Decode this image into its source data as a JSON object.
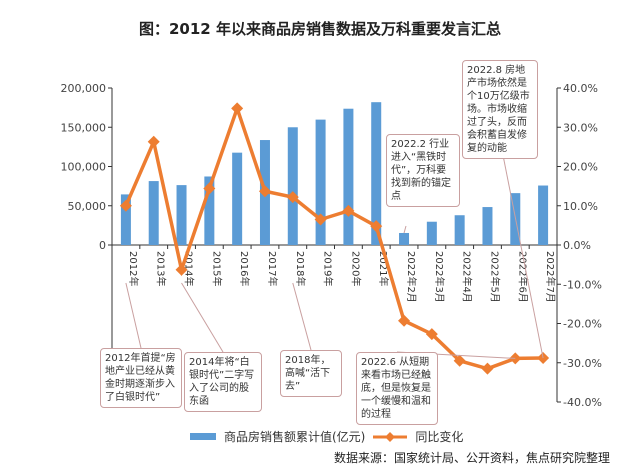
{
  "title": "图：2012 年以来商品房销售数据及万科重要发言汇总",
  "chart_data": {
    "type": "bar+line",
    "categories": [
      "2012年",
      "2013年",
      "2014年",
      "2015年",
      "2016年",
      "2017年",
      "2018年",
      "2019年",
      "2020年",
      "2021年",
      "2022年2月",
      "2022年3月",
      "2022年4月",
      "2022年5月",
      "2022年6月",
      "2022年7月"
    ],
    "series": [
      {
        "name": "商品房销售额累计值(亿元)",
        "type": "bar",
        "axis": "left",
        "color": "#5b9bd5",
        "values": [
          64456,
          81428,
          76292,
          87281,
          117627,
          133701,
          149973,
          159725,
          173613,
          181930,
          15303,
          29655,
          37921,
          48337,
          66072,
          75763
        ]
      },
      {
        "name": "同比变化",
        "type": "line",
        "axis": "right",
        "color": "#ed7d31",
        "values": [
          10.0,
          26.3,
          -6.3,
          14.4,
          34.8,
          13.7,
          12.2,
          6.5,
          8.7,
          4.8,
          -19.3,
          -22.7,
          -29.5,
          -31.5,
          -28.9,
          -28.8
        ]
      }
    ],
    "left_axis": {
      "ylim": [
        0,
        200000
      ],
      "ticks": [
        "0",
        "50,000",
        "100,000",
        "150,000",
        "200,000"
      ]
    },
    "right_axis": {
      "ylim": [
        -40,
        40
      ],
      "ticks": [
        "-40.0%",
        "-30.0%",
        "-20.0%",
        "-10.0%",
        "0.0%",
        "10.0%",
        "20.0%",
        "30.0%",
        "40.0%"
      ]
    },
    "legend_position": "bottom",
    "annotations": [
      {
        "text": "2012年首提“房地产业已经从黄金时期逐渐步入了白银时代”",
        "category": 0
      },
      {
        "text": "2014年将“白银时代”二字写入了公司的股东函",
        "category": 2
      },
      {
        "text": "2018年，高喊“活下去”",
        "category": 6
      },
      {
        "text": "2022.2 行业进入“黑铁时代”，万科要找到新的锚定点",
        "category": 10
      },
      {
        "text": "2022.6 从短期来看市场已经触底，但是恢复是一个缓慢和温和的过程",
        "category": 14
      },
      {
        "text": "2022.8 房地产市场依然是个10万亿级市场。市场收缩过了头，反而会积蓄自发修复的动能",
        "category": 15
      }
    ]
  },
  "source": "数据来源：国家统计局、公开资料，焦点研究院整理"
}
